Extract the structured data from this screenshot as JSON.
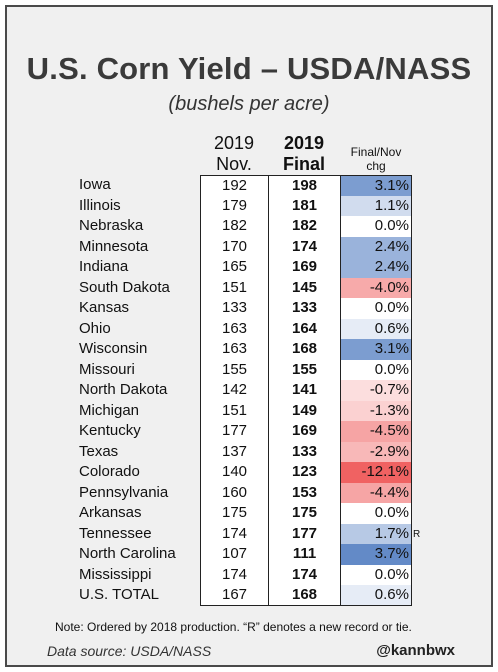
{
  "title": "U.S. Corn Yield – USDA/NASS",
  "subtitle": "(bushels per acre)",
  "headers": {
    "nov_line1": "2019",
    "nov_line2": "Nov.",
    "final_line1": "2019",
    "final_line2": "Final",
    "chg_line1": "Final/Nov",
    "chg_line2": "chg"
  },
  "rows": [
    {
      "state": "Iowa",
      "nov": "192",
      "final": "198",
      "chg": "3.1%",
      "chg_value": 3.1,
      "record": ""
    },
    {
      "state": "Illinois",
      "nov": "179",
      "final": "181",
      "chg": "1.1%",
      "chg_value": 1.1,
      "record": ""
    },
    {
      "state": "Nebraska",
      "nov": "182",
      "final": "182",
      "chg": "0.0%",
      "chg_value": 0.0,
      "record": ""
    },
    {
      "state": "Minnesota",
      "nov": "170",
      "final": "174",
      "chg": "2.4%",
      "chg_value": 2.4,
      "record": ""
    },
    {
      "state": "Indiana",
      "nov": "165",
      "final": "169",
      "chg": "2.4%",
      "chg_value": 2.4,
      "record": ""
    },
    {
      "state": "South Dakota",
      "nov": "151",
      "final": "145",
      "chg": "-4.0%",
      "chg_value": -4.0,
      "record": ""
    },
    {
      "state": "Kansas",
      "nov": "133",
      "final": "133",
      "chg": "0.0%",
      "chg_value": 0.0,
      "record": ""
    },
    {
      "state": "Ohio",
      "nov": "163",
      "final": "164",
      "chg": "0.6%",
      "chg_value": 0.6,
      "record": ""
    },
    {
      "state": "Wisconsin",
      "nov": "163",
      "final": "168",
      "chg": "3.1%",
      "chg_value": 3.1,
      "record": ""
    },
    {
      "state": "Missouri",
      "nov": "155",
      "final": "155",
      "chg": "0.0%",
      "chg_value": 0.0,
      "record": ""
    },
    {
      "state": "North Dakota",
      "nov": "142",
      "final": "141",
      "chg": "-0.7%",
      "chg_value": -0.7,
      "record": ""
    },
    {
      "state": "Michigan",
      "nov": "151",
      "final": "149",
      "chg": "-1.3%",
      "chg_value": -1.3,
      "record": ""
    },
    {
      "state": "Kentucky",
      "nov": "177",
      "final": "169",
      "chg": "-4.5%",
      "chg_value": -4.5,
      "record": ""
    },
    {
      "state": "Texas",
      "nov": "137",
      "final": "133",
      "chg": "-2.9%",
      "chg_value": -2.9,
      "record": ""
    },
    {
      "state": "Colorado",
      "nov": "140",
      "final": "123",
      "chg": "-12.1%",
      "chg_value": -12.1,
      "record": ""
    },
    {
      "state": "Pennsylvania",
      "nov": "160",
      "final": "153",
      "chg": "-4.4%",
      "chg_value": -4.4,
      "record": ""
    },
    {
      "state": "Arkansas",
      "nov": "175",
      "final": "175",
      "chg": "0.0%",
      "chg_value": 0.0,
      "record": ""
    },
    {
      "state": "Tennessee",
      "nov": "174",
      "final": "177",
      "chg": "1.7%",
      "chg_value": 1.7,
      "record": "R"
    },
    {
      "state": "North Carolina",
      "nov": "107",
      "final": "111",
      "chg": "3.7%",
      "chg_value": 3.7,
      "record": ""
    },
    {
      "state": "Mississippi",
      "nov": "174",
      "final": "174",
      "chg": "0.0%",
      "chg_value": 0.0,
      "record": ""
    },
    {
      "state": "U.S. TOTAL",
      "nov": "167",
      "final": "168",
      "chg": "0.6%",
      "chg_value": 0.6,
      "record": ""
    }
  ],
  "colors": {
    "positive_max": "#5b84c4",
    "negative_max": "#ef5a5a",
    "neutral": "#ffffff"
  },
  "note": "Note: Ordered by 2018 production. “R” denotes a new record or tie.",
  "source": "Data source: USDA/NASS",
  "handle": "@kannbwx"
}
